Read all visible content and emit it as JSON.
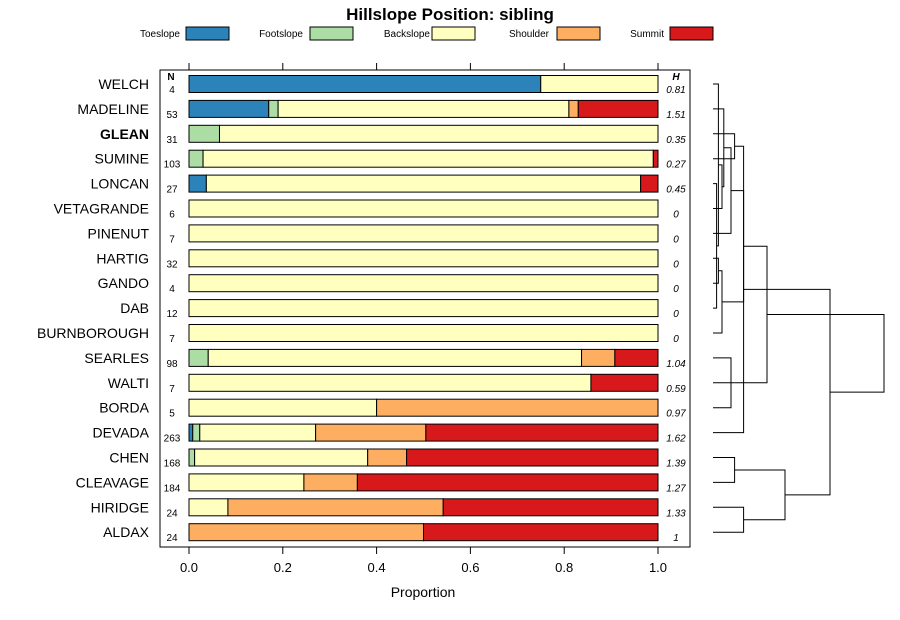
{
  "chart_data": {
    "type": "bar",
    "orientation": "horizontal",
    "stacked": true,
    "title": "Hillslope Position: sibling",
    "xlabel": "Proportion",
    "ylabel": "",
    "xlim": [
      0,
      1
    ],
    "xticks": [
      "0.0",
      "0.2",
      "0.4",
      "0.6",
      "0.8",
      "1.0"
    ],
    "xtick_values": [
      0,
      0.2,
      0.4,
      0.6,
      0.8,
      1.0
    ],
    "n_header": "N",
    "h_header": "H",
    "legend_position": "top",
    "highlighted_category": "GLEAN",
    "series": [
      {
        "name": "Toeslope",
        "color": "#2B83BA"
      },
      {
        "name": "Footslope",
        "color": "#ABDDA4"
      },
      {
        "name": "Backslope",
        "color": "#FFFFBF"
      },
      {
        "name": "Shoulder",
        "color": "#FDAE61"
      },
      {
        "name": "Summit",
        "color": "#D7191C"
      }
    ],
    "categories": [
      "WELCH",
      "MADELINE",
      "GLEAN",
      "SUMINE",
      "LONCAN",
      "VETAGRANDE",
      "PINENUT",
      "HARTIG",
      "GANDO",
      "DAB",
      "BURNBOROUGH",
      "SEARLES",
      "WALTI",
      "BORDA",
      "DEVADA",
      "CHEN",
      "CLEAVAGE",
      "HIRIDGE",
      "ALDAX"
    ],
    "n": [
      "4",
      "53",
      "31",
      "103",
      "27",
      "6",
      "7",
      "32",
      "4",
      "12",
      "7",
      "98",
      "7",
      "5",
      "263",
      "168",
      "184",
      "24",
      "24"
    ],
    "h": [
      "0.81",
      "1.51",
      "0.35",
      "0.27",
      "0.45",
      "0",
      "0",
      "0",
      "0",
      "0",
      "0",
      "1.04",
      "0.59",
      "0.97",
      "1.62",
      "1.39",
      "1.27",
      "1.33",
      "1"
    ],
    "values": [
      [
        0.75,
        0,
        0.25,
        0,
        0
      ],
      [
        0.17,
        0.02,
        0.62,
        0.02,
        0.17
      ],
      [
        0,
        0.065,
        0.935,
        0,
        0
      ],
      [
        0,
        0.03,
        0.96,
        0,
        0.01
      ],
      [
        0.037,
        0,
        0.926,
        0,
        0.037
      ],
      [
        0,
        0,
        1,
        0,
        0
      ],
      [
        0,
        0,
        1,
        0,
        0
      ],
      [
        0,
        0,
        1,
        0,
        0
      ],
      [
        0,
        0,
        1,
        0,
        0
      ],
      [
        0,
        0,
        1,
        0,
        0
      ],
      [
        0,
        0,
        1,
        0,
        0
      ],
      [
        0,
        0.041,
        0.796,
        0.071,
        0.092
      ],
      [
        0,
        0,
        0.857,
        0,
        0.143
      ],
      [
        0,
        0,
        0.4,
        0.6,
        0
      ],
      [
        0.008,
        0.015,
        0.247,
        0.235,
        0.495
      ],
      [
        0,
        0.012,
        0.369,
        0.083,
        0.536
      ],
      [
        0,
        0,
        0.245,
        0.114,
        0.641
      ],
      [
        0,
        0,
        0.083,
        0.459,
        0.458
      ],
      [
        0,
        0,
        0,
        0.5,
        0.5
      ]
    ],
    "dendrogram": {
      "merges": [
        [
          -5,
          -10
        ],
        [
          -1,
          1
        ],
        [
          -6,
          2
        ],
        [
          -2,
          3
        ],
        [
          -7,
          4
        ],
        [
          -8,
          -9
        ],
        [
          6,
          -11
        ],
        [
          5,
          7
        ],
        [
          -12,
          -14
        ],
        [
          9,
          -13
        ],
        [
          8,
          10
        ],
        [
          -3,
          -4
        ],
        [
          12,
          -15
        ],
        [
          -16,
          -17
        ],
        [
          -18,
          -19
        ],
        [
          14,
          15
        ],
        [
          13,
          16
        ],
        [
          11,
          17
        ]
      ],
      "heights": [
        0.02,
        0.03,
        0.05,
        0.06,
        0.1,
        0.03,
        0.05,
        0.17,
        0.1,
        0.12,
        0.3,
        0.12,
        0.17,
        0.12,
        0.17,
        0.4,
        0.65,
        0.95
      ],
      "max_height": 1
    }
  }
}
